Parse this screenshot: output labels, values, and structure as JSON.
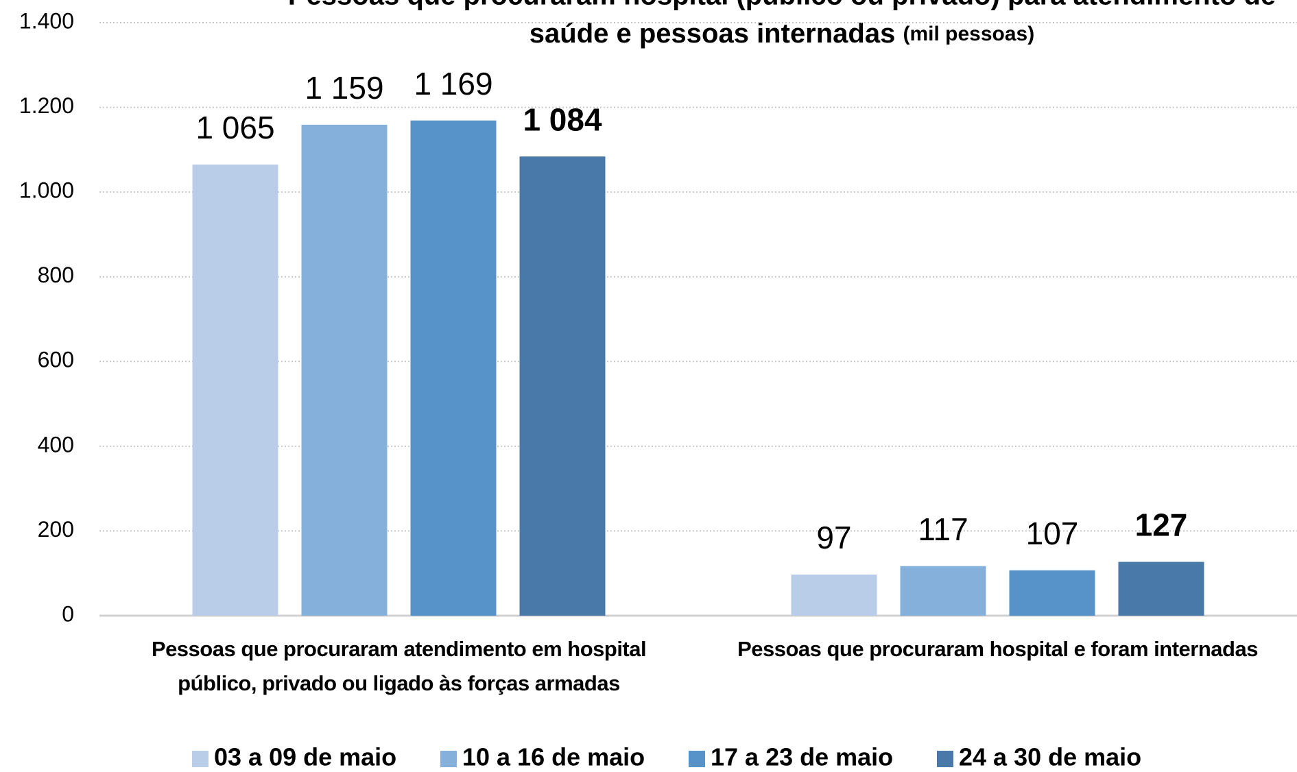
{
  "chart_data": {
    "type": "bar",
    "title": [
      "Pessoas que procuraram hospital (público ou privado) para atendimento de",
      "saúde e pessoas internadas"
    ],
    "title_unit": "(mil pessoas)",
    "categories": [
      "Pessoas que procuraram atendimento em hospital público, privado ou ligado às forças armadas",
      "Pessoas que procuraram hospital e foram internadas"
    ],
    "series": [
      {
        "name": "03 a 09 de maio",
        "color": "#b9cde8",
        "values": [
          1065,
          97
        ],
        "value_labels": [
          "1 065",
          "97"
        ]
      },
      {
        "name": "10 a 16 de maio",
        "color": "#85b0dc",
        "values": [
          1159,
          117
        ],
        "value_labels": [
          "1 159",
          "117"
        ]
      },
      {
        "name": "17 a 23 de maio",
        "color": "#5793c9",
        "values": [
          1169,
          107
        ],
        "value_labels": [
          "1 169",
          "107"
        ]
      },
      {
        "name": "24 a 30 de maio",
        "color": "#4879a8",
        "values": [
          1084,
          127
        ],
        "value_labels": [
          "1 084",
          "127"
        ],
        "bold_labels": true
      }
    ],
    "ylim": [
      0,
      1400
    ],
    "yticks": [
      0,
      200,
      400,
      600,
      800,
      {
        "value": 1000,
        "label": "1.000"
      },
      {
        "value": 1200,
        "label": "1.200"
      },
      {
        "value": 1400,
        "label": "1.400"
      }
    ],
    "grid": true,
    "legend": "bottom"
  }
}
